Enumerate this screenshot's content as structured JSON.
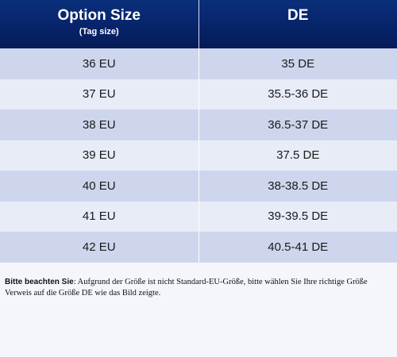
{
  "header": {
    "col1_title": "Option Size",
    "col1_subtitle": "(Tag size)",
    "col2_title": "DE"
  },
  "rows": [
    {
      "eu": "36 EU",
      "de": "35 DE"
    },
    {
      "eu": "37 EU",
      "de": "35.5-36 DE"
    },
    {
      "eu": "38 EU",
      "de": "36.5-37 DE"
    },
    {
      "eu": "39 EU",
      "de": "37.5 DE"
    },
    {
      "eu": "40 EU",
      "de": "38-38.5 DE"
    },
    {
      "eu": "41 EU",
      "de": "39-39.5 DE"
    },
    {
      "eu": "42 EU",
      "de": "40.5-41 DE"
    }
  ],
  "note": {
    "label": "Bitte beachten Sie",
    "text": ": Aufgrund der Größe ist nicht Standard-EU-Größe, bitte wählen Sie Ihre richtige Größe Verweis auf die Größe DE wie das Bild zeigte."
  },
  "colors": {
    "header_bg": "#07246a",
    "row_odd": "#cdd6ec",
    "row_even": "#e7ecf6"
  }
}
